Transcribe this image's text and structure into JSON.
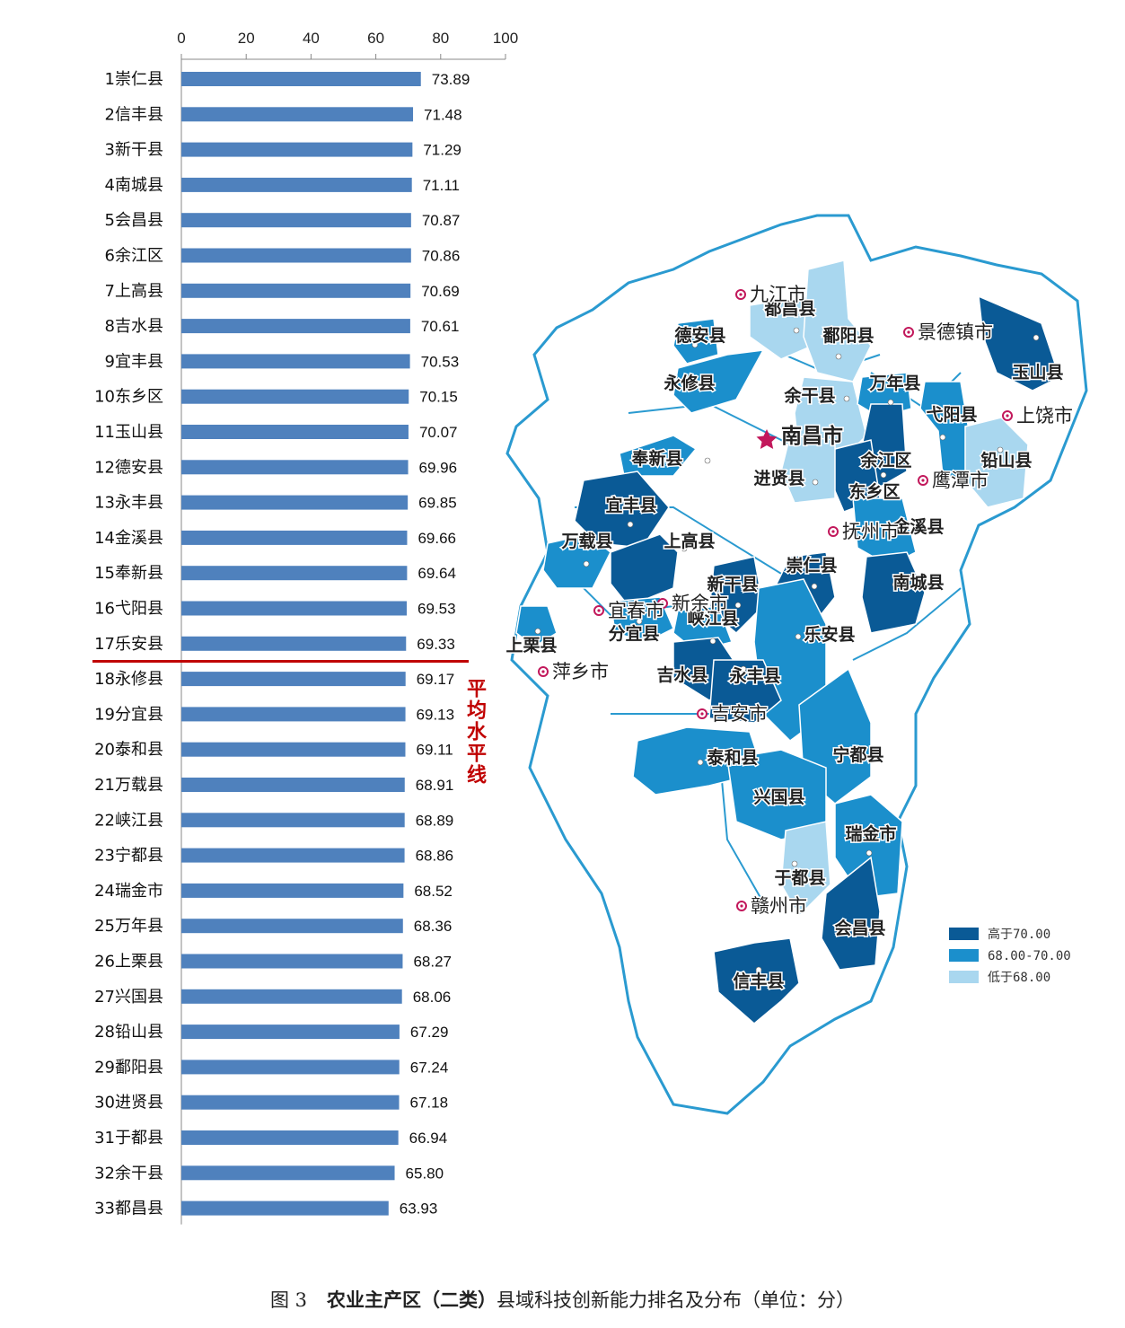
{
  "chart_data": {
    "type": "bar",
    "orientation": "horizontal",
    "x_ticks": [
      0,
      20,
      40,
      60,
      80,
      100
    ],
    "xlim": [
      0,
      100
    ],
    "bar_color": "#4f81bd",
    "categories": [
      "1崇仁县",
      "2信丰县",
      "3新干县",
      "4南城县",
      "5会昌县",
      "6余江区",
      "7上高县",
      "8吉水县",
      "9宜丰县",
      "10东乡区",
      "11玉山县",
      "12德安县",
      "13永丰县",
      "14金溪县",
      "15奉新县",
      "16弋阳县",
      "17乐安县",
      "18永修县",
      "19分宜县",
      "20泰和县",
      "21万载县",
      "22峡江县",
      "23宁都县",
      "24瑞金市",
      "25万年县",
      "26上栗县",
      "27兴国县",
      "28铅山县",
      "29鄱阳县",
      "30进贤县",
      "31于都县",
      "32余干县",
      "33都昌县"
    ],
    "values": [
      73.89,
      71.48,
      71.29,
      71.11,
      70.87,
      70.86,
      70.69,
      70.61,
      70.53,
      70.15,
      70.07,
      69.96,
      69.85,
      69.66,
      69.64,
      69.53,
      69.33,
      69.17,
      69.13,
      69.11,
      68.91,
      68.89,
      68.86,
      68.52,
      68.36,
      68.27,
      68.06,
      67.29,
      67.24,
      67.18,
      66.94,
      65.8,
      63.93
    ],
    "value_labels": [
      "73.89",
      "71.48",
      "71.29",
      "71.11",
      "70.87",
      "70.86",
      "70.69",
      "70.61",
      "70.53",
      "70.15",
      "70.07",
      "69.96",
      "69.85",
      "69.66",
      "69.64",
      "69.53",
      "69.33",
      "69.17",
      "69.13",
      "69.11",
      "68.91",
      "68.89",
      "68.86",
      "68.52",
      "68.36",
      "68.27",
      "68.06",
      "67.29",
      "67.24",
      "67.18",
      "66.94",
      "65.80",
      "63.93"
    ],
    "average_line": {
      "label": "平均水平线",
      "after_rank": 17,
      "color": "#c00000"
    }
  },
  "map": {
    "colors": {
      "high": "#0a5a96",
      "mid": "#1b8fcc",
      "low": "#a9d7ef",
      "none": "#ffffff",
      "border": "#2a9ad0",
      "city": "#c2185b"
    },
    "legend": [
      {
        "label": "高于70.00",
        "color": "#0a5a96"
      },
      {
        "label": "68.00-70.00",
        "color": "#1b8fcc"
      },
      {
        "label": "低于68.00",
        "color": "#a9d7ef"
      }
    ],
    "capital": "南昌市",
    "cities": [
      "九江市",
      "景德镇市",
      "上饶市",
      "鹰潭市",
      "抚州市",
      "新余市",
      "宜春市",
      "萍乡市",
      "吉安市",
      "赣州市"
    ],
    "counties": [
      "都昌县",
      "鄱阳县",
      "德安县",
      "永修县",
      "余干县",
      "万年县",
      "玉山县",
      "弋阳县",
      "铅山县",
      "余江区",
      "东乡区",
      "进贤县",
      "奉新县",
      "宜丰县",
      "万载县",
      "上高县",
      "金溪县",
      "崇仁县",
      "南城县",
      "新干县",
      "峡江县",
      "分宜县",
      "上栗县",
      "乐安县",
      "吉水县",
      "永丰县",
      "泰和县",
      "宁都县",
      "兴国县",
      "瑞金市",
      "于都县",
      "会昌县",
      "信丰县"
    ]
  },
  "caption": {
    "figure_no": "图 3",
    "bold_title": "农业主产区（二类）",
    "rest": "县域科技创新能力排名及分布（单位：分）"
  }
}
